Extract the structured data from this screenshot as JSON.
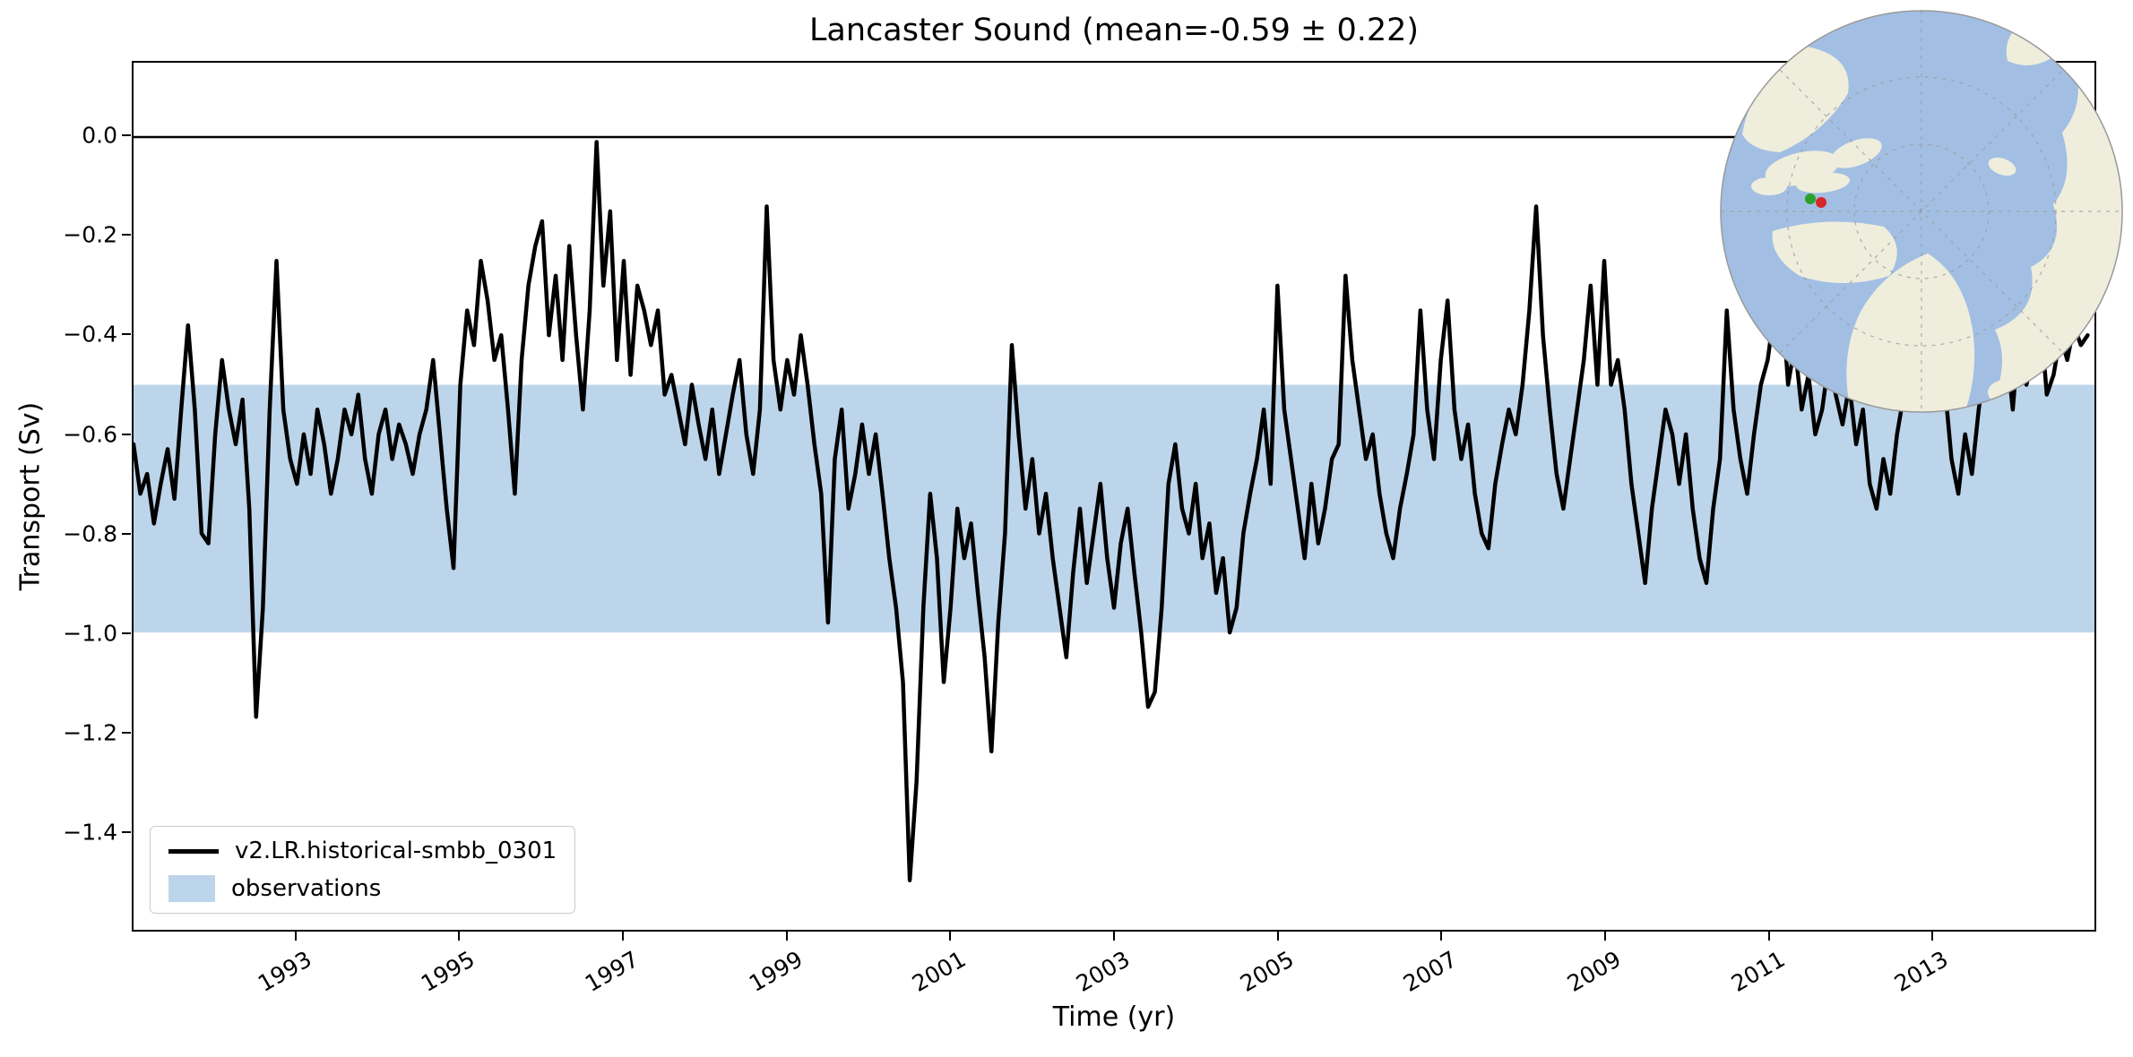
{
  "chart_data": {
    "type": "line",
    "title": "Lancaster Sound (mean=-0.59 ± 0.22)",
    "xlabel": "Time (yr)",
    "ylabel": "Transport (Sv)",
    "xlim": [
      1991,
      2015
    ],
    "ylim": [
      -1.6,
      0.15
    ],
    "grid": false,
    "reference_line_y": 0.0,
    "x_ticks": [
      1993,
      1995,
      1997,
      1999,
      2001,
      2003,
      2005,
      2007,
      2009,
      2011,
      2013
    ],
    "x_tick_labels": [
      "1993",
      "1995",
      "1997",
      "1999",
      "2001",
      "2003",
      "2005",
      "2007",
      "2009",
      "2011",
      "2013"
    ],
    "y_ticks": [
      0.0,
      -0.2,
      -0.4,
      -0.6,
      -0.8,
      -1.0,
      -1.2,
      -1.4
    ],
    "y_tick_labels": [
      "0.0",
      "−0.2",
      "−0.4",
      "−0.6",
      "−0.8",
      "−1.0",
      "−1.2",
      "−1.4"
    ],
    "x_start": 1991.0,
    "x_step_years": 0.0833333,
    "band": {
      "name": "observations",
      "y_min": -1.0,
      "y_max": -0.5,
      "color": "#bcd5ea"
    },
    "legend_position": "lower left",
    "series": [
      {
        "name": "v2.LR.historical-smbb_0301",
        "color": "#000000",
        "mean": -0.59,
        "std": 0.22,
        "values": [
          -0.62,
          -0.72,
          -0.68,
          -0.78,
          -0.7,
          -0.63,
          -0.73,
          -0.55,
          -0.38,
          -0.55,
          -0.8,
          -0.82,
          -0.6,
          -0.45,
          -0.55,
          -0.62,
          -0.53,
          -0.75,
          -1.17,
          -0.95,
          -0.55,
          -0.25,
          -0.55,
          -0.65,
          -0.7,
          -0.6,
          -0.68,
          -0.55,
          -0.62,
          -0.72,
          -0.65,
          -0.55,
          -0.6,
          -0.52,
          -0.65,
          -0.72,
          -0.6,
          -0.55,
          -0.65,
          -0.58,
          -0.62,
          -0.68,
          -0.6,
          -0.55,
          -0.45,
          -0.6,
          -0.75,
          -0.87,
          -0.5,
          -0.35,
          -0.42,
          -0.25,
          -0.33,
          -0.45,
          -0.4,
          -0.55,
          -0.72,
          -0.45,
          -0.3,
          -0.22,
          -0.17,
          -0.4,
          -0.28,
          -0.45,
          -0.22,
          -0.4,
          -0.55,
          -0.35,
          -0.01,
          -0.3,
          -0.15,
          -0.45,
          -0.25,
          -0.48,
          -0.3,
          -0.35,
          -0.42,
          -0.35,
          -0.52,
          -0.48,
          -0.55,
          -0.62,
          -0.5,
          -0.58,
          -0.65,
          -0.55,
          -0.68,
          -0.6,
          -0.52,
          -0.45,
          -0.6,
          -0.68,
          -0.55,
          -0.14,
          -0.45,
          -0.55,
          -0.45,
          -0.52,
          -0.4,
          -0.5,
          -0.62,
          -0.72,
          -0.98,
          -0.65,
          -0.55,
          -0.75,
          -0.68,
          -0.58,
          -0.68,
          -0.6,
          -0.72,
          -0.85,
          -0.95,
          -1.1,
          -1.5,
          -1.3,
          -0.95,
          -0.72,
          -0.85,
          -1.1,
          -0.95,
          -0.75,
          -0.85,
          -0.78,
          -0.92,
          -1.05,
          -1.24,
          -0.98,
          -0.8,
          -0.42,
          -0.6,
          -0.75,
          -0.65,
          -0.8,
          -0.72,
          -0.85,
          -0.95,
          -1.05,
          -0.88,
          -0.75,
          -0.9,
          -0.8,
          -0.7,
          -0.85,
          -0.95,
          -0.82,
          -0.75,
          -0.88,
          -1.0,
          -1.15,
          -1.12,
          -0.95,
          -0.7,
          -0.62,
          -0.75,
          -0.8,
          -0.7,
          -0.85,
          -0.78,
          -0.92,
          -0.85,
          -1.0,
          -0.95,
          -0.8,
          -0.72,
          -0.65,
          -0.55,
          -0.7,
          -0.3,
          -0.55,
          -0.65,
          -0.75,
          -0.85,
          -0.7,
          -0.82,
          -0.75,
          -0.65,
          -0.62,
          -0.28,
          -0.45,
          -0.55,
          -0.65,
          -0.6,
          -0.72,
          -0.8,
          -0.85,
          -0.75,
          -0.68,
          -0.6,
          -0.35,
          -0.55,
          -0.65,
          -0.45,
          -0.33,
          -0.55,
          -0.65,
          -0.58,
          -0.72,
          -0.8,
          -0.83,
          -0.7,
          -0.62,
          -0.55,
          -0.6,
          -0.5,
          -0.35,
          -0.14,
          -0.4,
          -0.55,
          -0.68,
          -0.75,
          -0.65,
          -0.55,
          -0.45,
          -0.3,
          -0.5,
          -0.25,
          -0.5,
          -0.45,
          -0.55,
          -0.7,
          -0.8,
          -0.9,
          -0.75,
          -0.65,
          -0.55,
          -0.6,
          -0.7,
          -0.6,
          -0.75,
          -0.85,
          -0.9,
          -0.75,
          -0.65,
          -0.35,
          -0.55,
          -0.65,
          -0.72,
          -0.6,
          -0.5,
          -0.45,
          -0.35,
          -0.3,
          -0.5,
          -0.42,
          -0.55,
          -0.48,
          -0.6,
          -0.55,
          -0.45,
          -0.52,
          -0.58,
          -0.5,
          -0.62,
          -0.55,
          -0.7,
          -0.75,
          -0.65,
          -0.72,
          -0.6,
          -0.52,
          -0.35,
          -0.48,
          -0.55,
          -0.45,
          -0.55,
          -0.5,
          -0.65,
          -0.72,
          -0.6,
          -0.68,
          -0.55,
          -0.45,
          -0.3,
          -0.5,
          -0.42,
          -0.55,
          -0.38,
          -0.5,
          -0.45,
          -0.35,
          -0.52,
          -0.48,
          -0.4,
          -0.45,
          -0.38,
          -0.42,
          -0.4
        ]
      }
    ]
  },
  "legend": {
    "items": [
      {
        "label": "v2.LR.historical-smbb_0301",
        "swatch": "line"
      },
      {
        "label": "observations",
        "swatch": "patch"
      }
    ]
  },
  "inset_map": {
    "name": "arctic-polar-stereographic-map",
    "ocean_color": "#a2bfe3",
    "land_color": "#efeedd",
    "graticule_color": "#9a9a9a",
    "marker_red": "#d62728",
    "marker_green": "#2ca02c"
  }
}
